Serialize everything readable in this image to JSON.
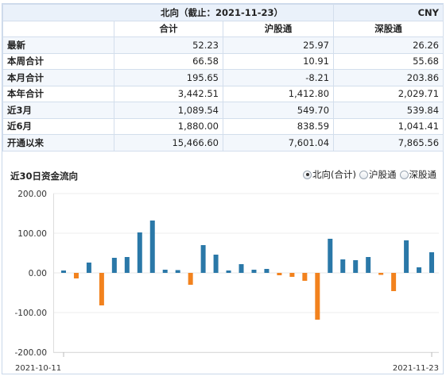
{
  "header": {
    "title": "北向（截止：2021-11-23）",
    "currency": "CNY"
  },
  "columns": [
    "合计",
    "沪股通",
    "深股通"
  ],
  "rows": [
    {
      "label": "最新",
      "values": [
        "52.23",
        "25.97",
        "26.26"
      ]
    },
    {
      "label": "本周合计",
      "values": [
        "66.58",
        "10.91",
        "55.68"
      ]
    },
    {
      "label": "本月合计",
      "values": [
        "195.65",
        "-8.21",
        "203.86"
      ]
    },
    {
      "label": "本年合计",
      "values": [
        "3,442.51",
        "1,412.80",
        "2,029.71"
      ]
    },
    {
      "label": "近3月",
      "values": [
        "1,089.54",
        "549.70",
        "539.84"
      ]
    },
    {
      "label": "近6月",
      "values": [
        "1,880.00",
        "838.59",
        "1,041.41"
      ]
    },
    {
      "label": "开通以来",
      "values": [
        "15,466.60",
        "7,601.04",
        "7,865.56"
      ]
    }
  ],
  "chart_section": {
    "title": "近30日资金流向",
    "options": [
      {
        "label": "北向(合计)",
        "selected": true
      },
      {
        "label": "沪股通",
        "selected": false
      },
      {
        "label": "深股通",
        "selected": false
      }
    ]
  },
  "colors": {
    "positive": "#2a78a8",
    "negative": "#f2821e"
  },
  "chart_data": {
    "type": "bar",
    "title": "",
    "xlabel": "",
    "ylabel": "",
    "ylim": [
      -200,
      200
    ],
    "ytick_labels": [
      "200.00",
      "100.00",
      "0.00",
      "-100.00",
      "-200.00"
    ],
    "yticks": [
      200,
      100,
      0,
      -100,
      -200
    ],
    "x_start_label": "2021-10-11",
    "x_end_label": "2021-11-23",
    "grid": true,
    "series": [
      {
        "values": [
          6,
          -14,
          26,
          -82,
          38,
          40,
          102,
          132,
          8,
          7,
          -30,
          70,
          46,
          6,
          22,
          8,
          10,
          -6,
          -10,
          -20,
          -118,
          86,
          34,
          32,
          40,
          -5,
          -46,
          82,
          14,
          52
        ]
      }
    ]
  }
}
